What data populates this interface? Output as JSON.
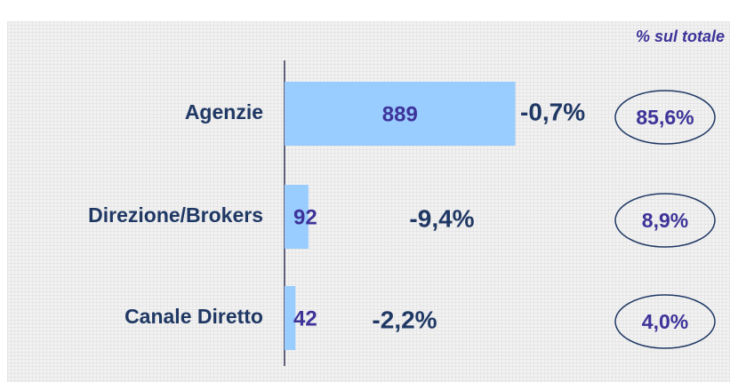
{
  "chart_data": {
    "type": "barh",
    "annotation": "% sul totale",
    "categories": [
      "Agenzie",
      "Direzione/Brokers",
      "Canale Diretto"
    ],
    "values": [
      889,
      92,
      42
    ],
    "color": "#99ccff",
    "xlim": [
      0,
      1000
    ],
    "changes": {
      "values": [
        -0.7,
        -9.4,
        -2.2
      ],
      "value_labels": [
        "-0,7%",
        "-9,4%",
        "-2,2%"
      ]
    },
    "shares": {
      "values": [
        85.6,
        8.9,
        4.0
      ],
      "value_labels": [
        "85,6%",
        "8,9%",
        "4,0%"
      ]
    }
  }
}
